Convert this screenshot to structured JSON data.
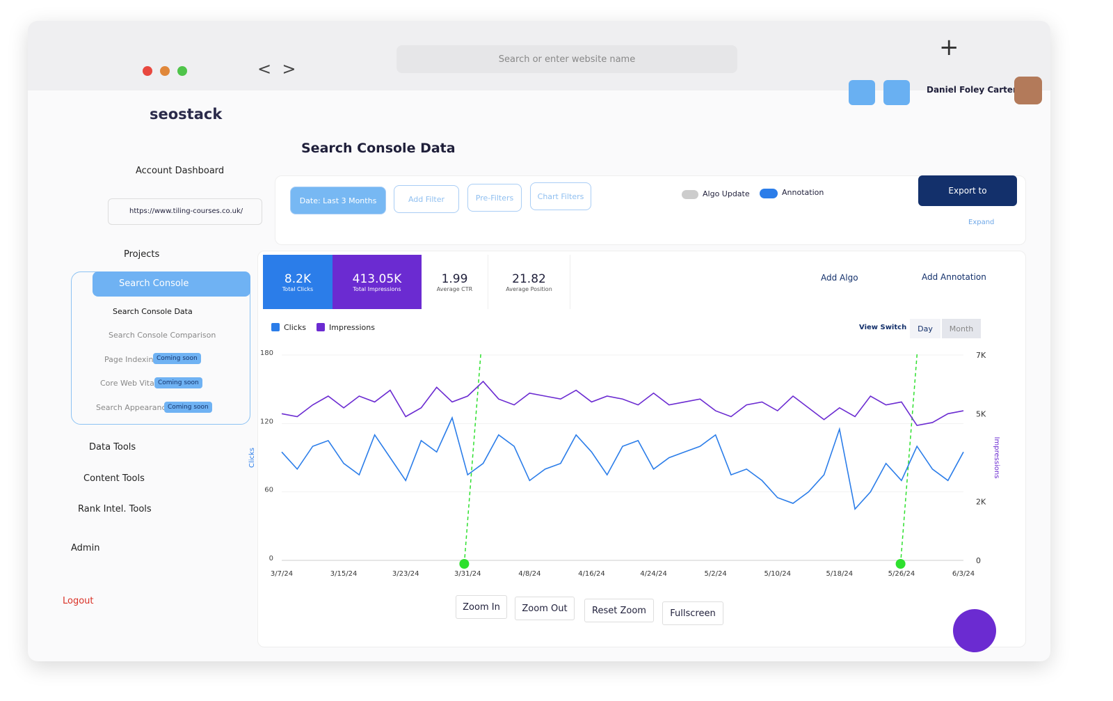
{
  "browser": {
    "search_placeholder": "Search or enter website name"
  },
  "user": {
    "name": "Daniel Foley Carter"
  },
  "sidebar": {
    "logo": "seostack",
    "account_dashboard": "Account Dashboard",
    "site_url": "https://www.tiling-courses.co.uk/",
    "projects": "Projects",
    "search_console": {
      "label": "Search Console",
      "items": [
        {
          "label": "Search Console Data"
        },
        {
          "label": "Search Console Comparison"
        },
        {
          "label": "Page Indexing",
          "badge": "Coming soon"
        },
        {
          "label": "Core Web Vitals",
          "badge": "Coming soon"
        },
        {
          "label": "Search Appearance",
          "badge": "Coming soon"
        }
      ]
    },
    "data_tools": "Data Tools",
    "content_tools": "Content Tools",
    "rank_tools": "Rank Intel. Tools",
    "admin": "Admin",
    "logout": "Logout"
  },
  "header": {
    "title": "Search Console Data"
  },
  "filters": [
    "Date: Last 3 Months",
    "Add Filter",
    "Pre-Filters",
    "Chart Filters"
  ],
  "toggles": [
    "Algo Update",
    "Annotation"
  ],
  "export": "Export to",
  "expand": "Expand",
  "metrics": [
    {
      "value": "8.2K",
      "label": "Total Clicks"
    },
    {
      "value": "413.05K",
      "label": "Total Impressions"
    },
    {
      "value": "1.99",
      "label": "Average CTR"
    },
    {
      "value": "21.82",
      "label": "Average Position"
    }
  ],
  "actions": [
    "Add Algo",
    "Add Annotation"
  ],
  "view": {
    "label": "View Switch",
    "options": [
      "Day",
      "Month"
    ]
  },
  "zoom": [
    "Zoom In",
    "Zoom Out",
    "Reset Zoom",
    "Fullscreen"
  ],
  "chart_data": {
    "type": "line",
    "ylabel": "Clicks",
    "y2label": "Impressions",
    "categories": [
      "3/7/24",
      null,
      null,
      null,
      "3/15/24",
      null,
      null,
      null,
      "3/23/24",
      null,
      null,
      null,
      "3/31/24",
      null,
      null,
      null,
      "4/8/24",
      null,
      null,
      null,
      "4/16/24",
      null,
      null,
      null,
      "4/24/24",
      null,
      null,
      null,
      "5/2/24",
      null,
      null,
      null,
      "5/10/24",
      null,
      null,
      null,
      "5/18/24",
      null,
      null,
      null,
      "5/26/24",
      null,
      null,
      null,
      "6/3/24"
    ],
    "series": [
      {
        "name": "Clicks",
        "color": "#2b7de9",
        "values": [
          95,
          80,
          100,
          105,
          85,
          75,
          110,
          90,
          70,
          105,
          95,
          125,
          75,
          85,
          110,
          100,
          70,
          80,
          85,
          110,
          95,
          75,
          100,
          105,
          80,
          90,
          95,
          100,
          110,
          75,
          80,
          70,
          55,
          50,
          60,
          75,
          115,
          45,
          60,
          85,
          70,
          100,
          80,
          70,
          95
        ]
      },
      {
        "name": "Impressions",
        "color": "#6b2bd1",
        "axis": "y2",
        "values": [
          5000,
          4900,
          5300,
          5600,
          5200,
          5600,
          5400,
          5800,
          4900,
          5200,
          5900,
          5400,
          5600,
          6100,
          5500,
          5300,
          5700,
          5600,
          5500,
          5800,
          5400,
          5600,
          5500,
          5300,
          5700,
          5300,
          5400,
          5500,
          5100,
          4900,
          5300,
          5400,
          5100,
          5600,
          5200,
          4800,
          5200,
          4900,
          5600,
          5300,
          5400,
          4600,
          4700,
          5000,
          5100
        ]
      }
    ],
    "ylim": [
      0,
      180
    ],
    "yticks": [
      0,
      60,
      120,
      180
    ],
    "y2lim": [
      0,
      7000
    ],
    "y2ticks": [
      0,
      {
        "value": 2000,
        "label": "2K"
      },
      {
        "value": 5000,
        "label": "5K"
      },
      {
        "value": 7000,
        "label": "7K"
      }
    ]
  }
}
